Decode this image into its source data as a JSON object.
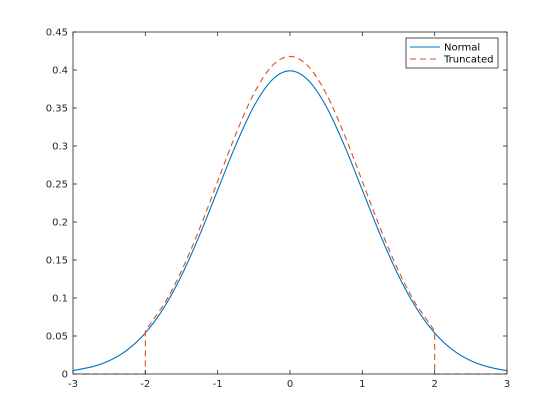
{
  "chart_data": {
    "type": "line",
    "title": "",
    "xlabel": "",
    "ylabel": "",
    "xlim": [
      -3,
      3
    ],
    "ylim": [
      0,
      0.45
    ],
    "grid": false,
    "legend_placement": "top-right",
    "x_ticks": [
      "-3",
      "-2",
      "-1",
      "0",
      "1",
      "2",
      "3"
    ],
    "y_ticks": [
      "0",
      "0.05",
      "0.1",
      "0.15",
      "0.2",
      "0.25",
      "0.3",
      "0.35",
      "0.4",
      "0.45"
    ],
    "series": [
      {
        "name": "Normal",
        "color": "#0072BD",
        "style": "solid",
        "x": [
          -3,
          -2.75,
          -2.5,
          -2.25,
          -2,
          -1.75,
          -1.5,
          -1.25,
          -1,
          -0.75,
          -0.5,
          -0.25,
          0,
          0.25,
          0.5,
          0.75,
          1,
          1.25,
          1.5,
          1.75,
          2,
          2.25,
          2.5,
          2.75,
          3
        ],
        "y": [
          0.0044,
          0.0091,
          0.0175,
          0.0317,
          0.054,
          0.0863,
          0.1295,
          0.1826,
          0.242,
          0.3011,
          0.3521,
          0.3867,
          0.3989,
          0.3867,
          0.3521,
          0.3011,
          0.242,
          0.1826,
          0.1295,
          0.0863,
          0.054,
          0.0317,
          0.0175,
          0.0091,
          0.0044
        ]
      },
      {
        "name": "Truncated",
        "color": "#D95319",
        "style": "dashed",
        "x": [
          -3,
          -2,
          -2,
          -1.75,
          -1.5,
          -1.25,
          -1,
          -0.75,
          -0.5,
          -0.25,
          0,
          0.25,
          0.5,
          0.75,
          1,
          1.25,
          1.5,
          1.75,
          2,
          2,
          3
        ],
        "y": [
          0,
          0,
          0.0566,
          0.0904,
          0.1357,
          0.1913,
          0.2535,
          0.3154,
          0.3689,
          0.4051,
          0.4179,
          0.4051,
          0.3689,
          0.3154,
          0.2535,
          0.1913,
          0.1357,
          0.0904,
          0.0566,
          0,
          0
        ]
      }
    ]
  }
}
